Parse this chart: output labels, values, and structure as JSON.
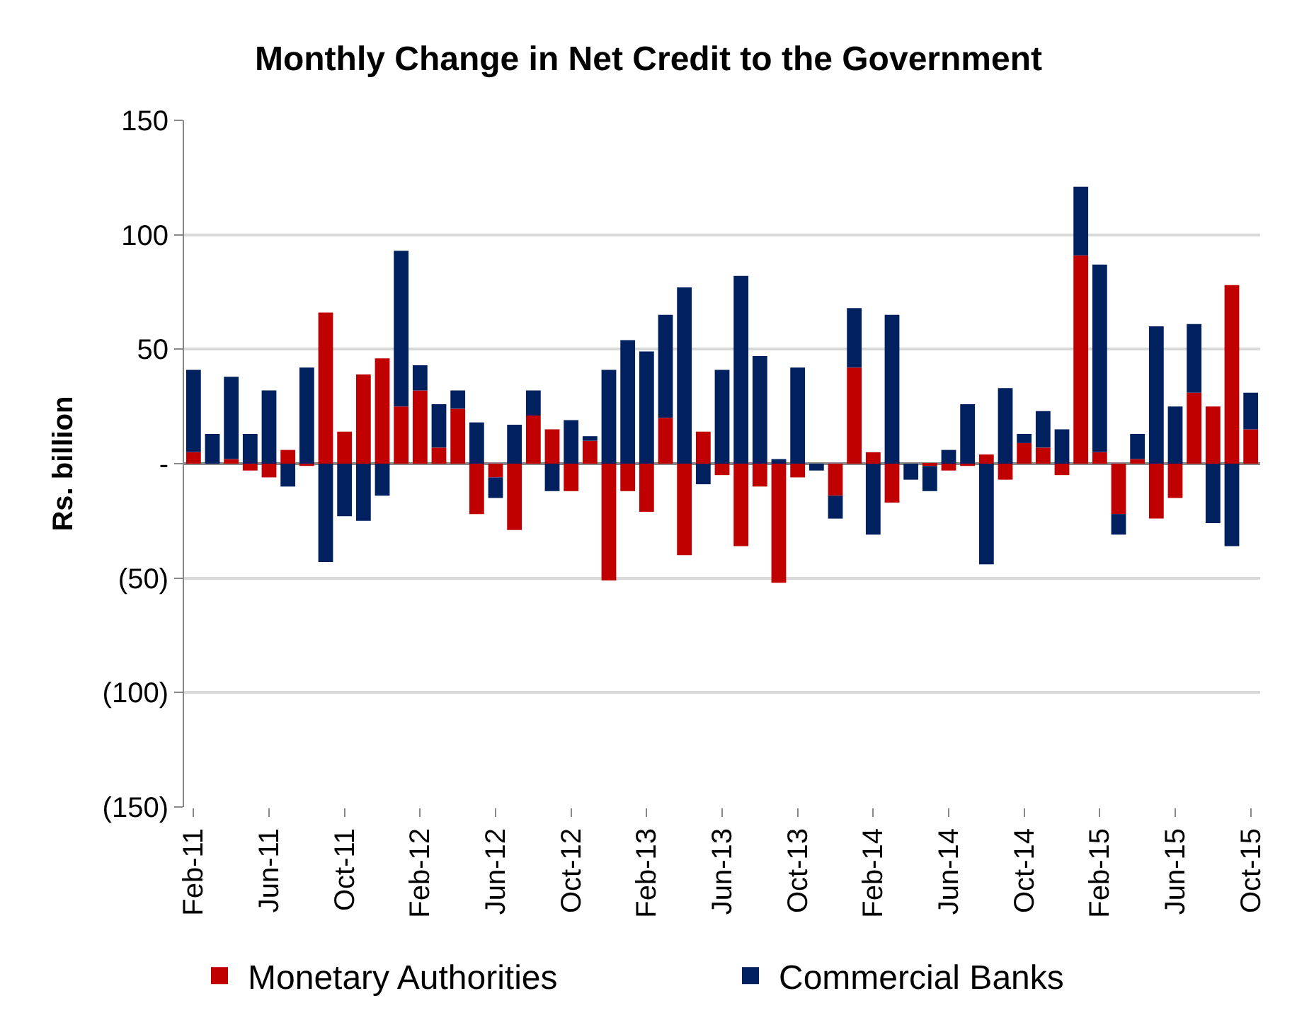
{
  "chart_data": {
    "type": "bar",
    "title": "Monthly Change in Net Credit to the Government",
    "ylabel": "Rs. billion",
    "stacked": true,
    "categories": [
      "Feb-11",
      null,
      null,
      null,
      "Jun-11",
      null,
      null,
      null,
      "Oct-11",
      null,
      null,
      null,
      "Feb-12",
      null,
      null,
      null,
      "Jun-12",
      null,
      null,
      null,
      "Oct-12",
      null,
      null,
      null,
      "Feb-13",
      null,
      null,
      null,
      "Jun-13",
      null,
      null,
      null,
      "Oct-13",
      null,
      null,
      null,
      "Feb-14",
      null,
      null,
      null,
      "Jun-14",
      null,
      null,
      null,
      "Oct-14",
      null,
      null,
      null,
      "Feb-15",
      null,
      null,
      null,
      "Jun-15",
      null,
      null,
      null,
      "Oct-15"
    ],
    "series": [
      {
        "name": "Monetary Authorities",
        "color": "#c00000",
        "values": [
          5,
          0,
          2,
          -3,
          -6,
          6,
          -1,
          66,
          14,
          39,
          46,
          25,
          32,
          7,
          24,
          -22,
          -6,
          -29,
          21,
          15,
          -12,
          10,
          -51,
          -12,
          -21,
          20,
          -40,
          14,
          -5,
          -36,
          -10,
          -52,
          -6,
          0,
          -14,
          42,
          5,
          -17,
          0,
          -1,
          -3,
          -1,
          4,
          -7,
          9,
          7,
          -5,
          91,
          5,
          -22,
          2,
          -24,
          -15,
          31,
          25,
          78,
          15
        ]
      },
      {
        "name": "Commercial Banks",
        "color": "#002060",
        "values": [
          36,
          13,
          36,
          13,
          32,
          -10,
          42,
          -43,
          -23,
          -25,
          -14,
          68,
          11,
          19,
          8,
          18,
          -9,
          17,
          11,
          -12,
          19,
          2,
          41,
          54,
          49,
          45,
          77,
          -9,
          41,
          82,
          47,
          2,
          42,
          -3,
          -10,
          26,
          -31,
          65,
          -7,
          -11,
          6,
          26,
          -44,
          33,
          4,
          16,
          15,
          30,
          82,
          -9,
          11,
          60,
          25,
          30,
          -26,
          -36,
          16
        ]
      }
    ],
    "ylim": [
      -150,
      150
    ],
    "yticks": [
      {
        "value": -150,
        "label": "(150)"
      },
      {
        "value": -100,
        "label": "(100)"
      },
      {
        "value": -50,
        "label": "(50)"
      },
      {
        "value": 0,
        "label": "-"
      },
      50,
      100,
      150
    ],
    "grid": "y",
    "legend": "bottom"
  }
}
